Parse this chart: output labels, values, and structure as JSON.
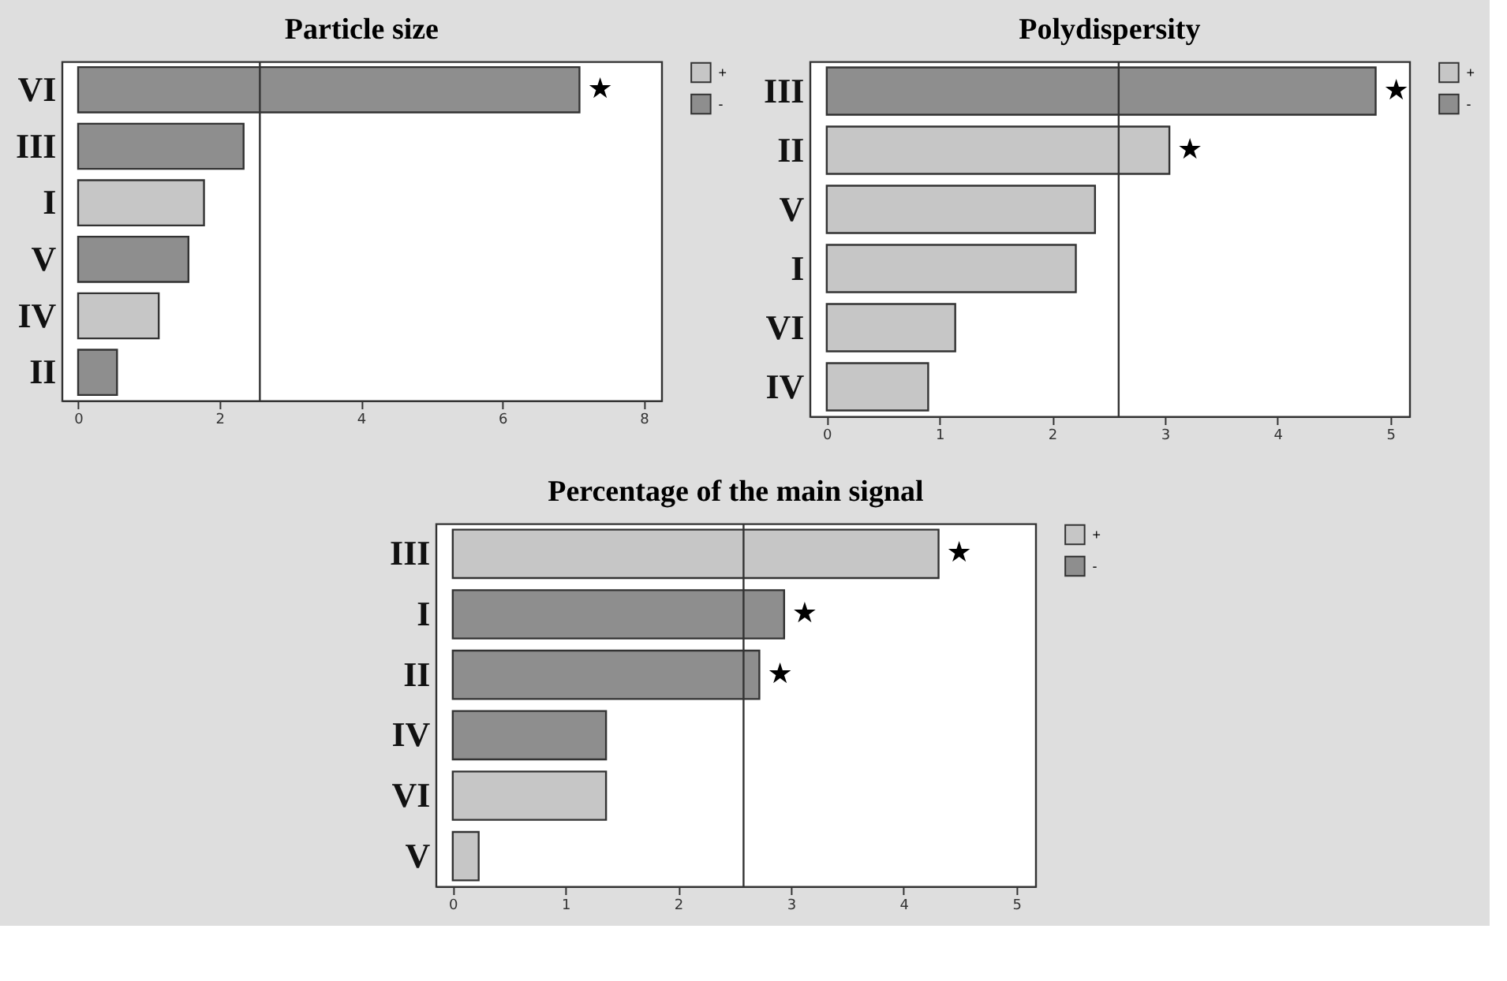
{
  "chart_data": [
    {
      "type": "bar",
      "orientation": "horizontal",
      "title": "Particle size",
      "categories": [
        "VI",
        "III",
        "I",
        "V",
        "IV",
        "II"
      ],
      "series": [
        {
          "name": "+",
          "color": "#c6c6c6",
          "values": [
            null,
            null,
            1.78,
            null,
            1.14,
            null
          ]
        },
        {
          "name": "-",
          "color": "#8e8e8e",
          "values": [
            7.09,
            2.34,
            null,
            1.56,
            null,
            0.55
          ]
        }
      ],
      "xlim": [
        -0.23,
        8.25
      ],
      "xticks": [
        0,
        2,
        4,
        6,
        8
      ],
      "ref_lines": [
        {
          "axis": "x",
          "value": 2.57
        }
      ],
      "annotations": [
        {
          "text": "★",
          "x": 7.09,
          "y": "VI"
        }
      ],
      "legend": "top right",
      "grid": false
    },
    {
      "type": "bar",
      "orientation": "horizontal",
      "title": "Polydispersity",
      "categories": [
        "III",
        "II",
        "V",
        "I",
        "VI",
        "IV"
      ],
      "series": [
        {
          "name": "+",
          "color": "#c6c6c6",
          "values": [
            null,
            3.04,
            2.38,
            2.21,
            1.14,
            0.9
          ]
        },
        {
          "name": "-",
          "color": "#8e8e8e",
          "values": [
            4.87,
            null,
            null,
            null,
            null,
            null
          ]
        }
      ],
      "xlim": [
        -0.15,
        5.17
      ],
      "xticks": [
        0,
        1,
        2,
        3,
        4,
        5
      ],
      "ref_lines": [
        {
          "axis": "x",
          "value": 2.59
        }
      ],
      "annotations": [
        {
          "text": "★",
          "x": 4.87,
          "y": "III"
        },
        {
          "text": "★",
          "x": 3.04,
          "y": "II"
        }
      ],
      "legend": "top right",
      "grid": false
    },
    {
      "type": "bar",
      "orientation": "horizontal",
      "title": "Percentage of the main signal",
      "categories": [
        "III",
        "I",
        "II",
        "IV",
        "VI",
        "V"
      ],
      "series": [
        {
          "name": "+",
          "color": "#c6c6c6",
          "values": [
            4.31,
            null,
            null,
            null,
            1.36,
            0.23
          ]
        },
        {
          "name": "-",
          "color": "#8e8e8e",
          "values": [
            null,
            2.94,
            2.72,
            1.36,
            null,
            null
          ]
        }
      ],
      "xlim": [
        -0.15,
        5.17
      ],
      "xticks": [
        0,
        1,
        2,
        3,
        4,
        5
      ],
      "ref_lines": [
        {
          "axis": "x",
          "value": 2.58
        }
      ],
      "annotations": [
        {
          "text": "★",
          "x": 4.31,
          "y": "III"
        },
        {
          "text": "★",
          "x": 2.94,
          "y": "I"
        },
        {
          "text": "★",
          "x": 2.72,
          "y": "II"
        }
      ],
      "legend": "top right",
      "grid": false
    }
  ]
}
